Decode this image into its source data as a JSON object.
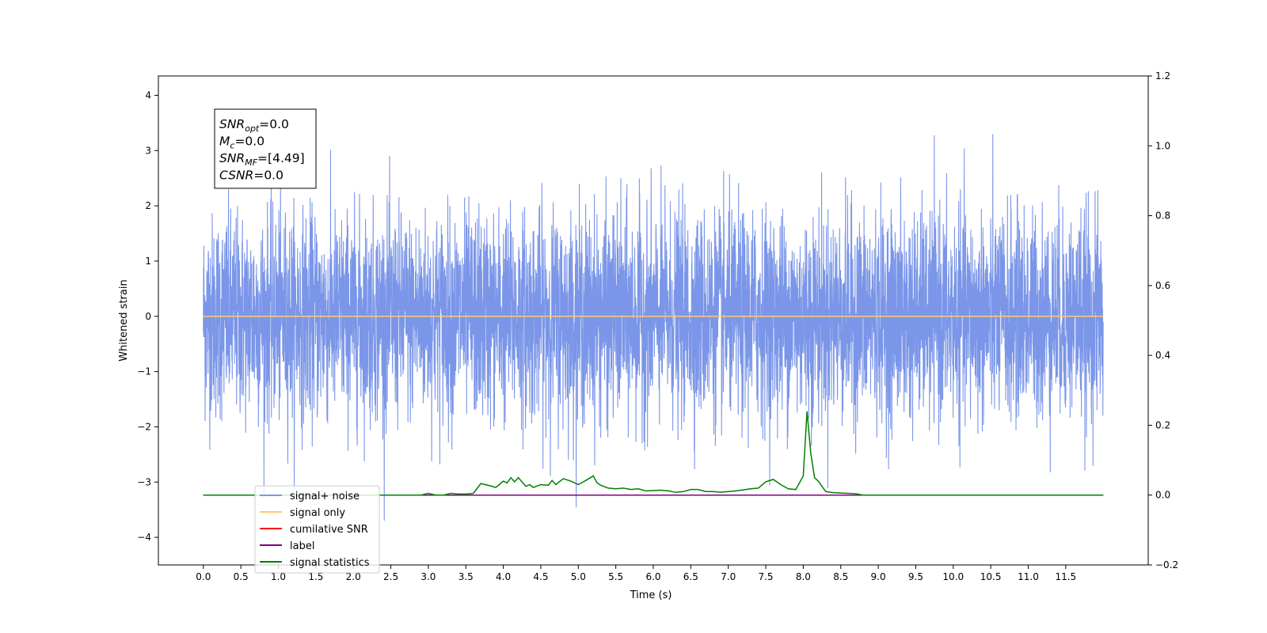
{
  "chart_data": {
    "type": "line",
    "xlabel": "Time (s)",
    "ylabel": "Whitened strain",
    "xlim": [
      -0.6,
      12.6
    ],
    "ylim_left": [
      -4.5,
      4.35
    ],
    "ylim_right": [
      -0.2,
      1.2
    ],
    "xticks": [
      0.0,
      0.5,
      1.0,
      1.5,
      2.0,
      2.5,
      3.0,
      3.5,
      4.0,
      4.5,
      5.0,
      5.5,
      6.0,
      6.5,
      7.0,
      7.5,
      8.0,
      8.5,
      9.0,
      9.5,
      10.0,
      10.5,
      11.0,
      11.5
    ],
    "xtick_labels": [
      "0.0",
      "0.5",
      "1.0",
      "1.5",
      "2.0",
      "2.5",
      "3.0",
      "3.5",
      "4.0",
      "4.5",
      "5.0",
      "5.5",
      "6.0",
      "6.5",
      "7.0",
      "7.5",
      "8.0",
      "8.5",
      "9.0",
      "9.5",
      "10.0",
      "10.5",
      "11.0",
      "11.5"
    ],
    "yticks_left": [
      4,
      3,
      2,
      1,
      0,
      -1,
      -2,
      -3,
      -4
    ],
    "ytick_labels_left": [
      "4",
      "3",
      "2",
      "1",
      "0",
      "−1",
      "−2",
      "−3",
      "−4"
    ],
    "yticks_right": [
      1.2,
      1.0,
      0.8,
      0.6,
      0.4,
      0.2,
      0.0,
      -0.2
    ],
    "ytick_labels_right": [
      "1.2",
      "1.0",
      "0.8",
      "0.6",
      "0.4",
      "0.2",
      "0.0",
      "−0.2"
    ],
    "grid": false,
    "legend_placement": "lower-left",
    "annotation": {
      "lines": [
        {
          "sym": "SNR",
          "sub": "opt",
          "val": "=0.0"
        },
        {
          "sym": "M",
          "sub": "c",
          "val": "=0.0"
        },
        {
          "sym": "SNR",
          "sub": "MF",
          "val": "=[4.49]"
        },
        {
          "sym": "CSNR",
          "sub": "",
          "val": "=0.0"
        }
      ]
    },
    "series": [
      {
        "name": "signal+ noise",
        "color": "#7b96e8",
        "axis": "left",
        "kind": "noise",
        "x_range": [
          0.0,
          12.0
        ],
        "y_range": [
          -4.1,
          3.95
        ]
      },
      {
        "name": "signal only",
        "color": "#ffc870",
        "axis": "left",
        "x": [
          0.0,
          12.0
        ],
        "y": [
          0.0,
          0.0
        ]
      },
      {
        "name": "cumilative SNR",
        "color": "#ff0000",
        "axis": "right",
        "x": [
          0.0,
          12.0
        ],
        "y": [
          0.0,
          0.0
        ]
      },
      {
        "name": "label",
        "color": "#800080",
        "axis": "right",
        "x": [
          0.0,
          12.0
        ],
        "y": [
          0.0,
          0.0
        ]
      },
      {
        "name": "signal statistics",
        "color": "#008000",
        "axis": "right",
        "x": [
          0.0,
          2.0,
          2.9,
          3.0,
          3.1,
          3.2,
          3.3,
          3.4,
          3.5,
          3.6,
          3.7,
          3.8,
          3.9,
          4.0,
          4.05,
          4.1,
          4.15,
          4.2,
          4.3,
          4.35,
          4.4,
          4.5,
          4.6,
          4.65,
          4.7,
          4.8,
          4.9,
          5.0,
          5.1,
          5.2,
          5.25,
          5.3,
          5.4,
          5.5,
          5.6,
          5.7,
          5.8,
          5.9,
          6.0,
          6.1,
          6.2,
          6.3,
          6.4,
          6.5,
          6.6,
          6.7,
          6.8,
          6.9,
          7.0,
          7.1,
          7.2,
          7.3,
          7.4,
          7.5,
          7.6,
          7.7,
          7.8,
          7.9,
          8.0,
          8.05,
          8.1,
          8.15,
          8.2,
          8.25,
          8.3,
          8.4,
          8.5,
          8.6,
          8.7,
          8.8,
          9.0,
          12.0
        ],
        "y": [
          0.0,
          0.0,
          0.0,
          0.005,
          0.0,
          0.0,
          0.005,
          0.003,
          0.003,
          0.005,
          0.033,
          0.028,
          0.022,
          0.04,
          0.035,
          0.05,
          0.038,
          0.05,
          0.025,
          0.03,
          0.022,
          0.03,
          0.028,
          0.042,
          0.03,
          0.047,
          0.04,
          0.03,
          0.042,
          0.055,
          0.035,
          0.028,
          0.02,
          0.018,
          0.02,
          0.016,
          0.018,
          0.012,
          0.013,
          0.014,
          0.012,
          0.008,
          0.01,
          0.016,
          0.016,
          0.01,
          0.01,
          0.008,
          0.01,
          0.012,
          0.015,
          0.018,
          0.02,
          0.038,
          0.045,
          0.03,
          0.018,
          0.016,
          0.055,
          0.24,
          0.12,
          0.05,
          0.04,
          0.025,
          0.01,
          0.007,
          0.006,
          0.005,
          0.004,
          0.0,
          0.0,
          0.0
        ]
      }
    ]
  }
}
